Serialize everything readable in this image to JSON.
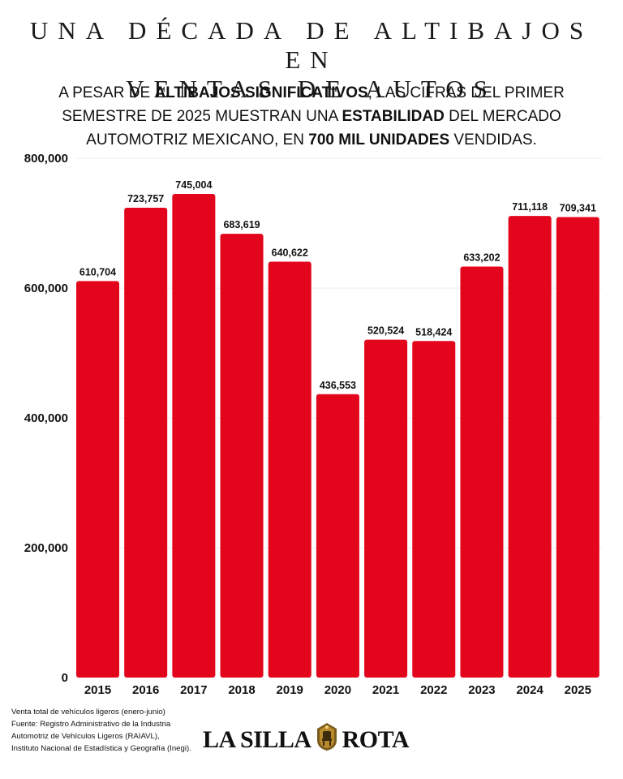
{
  "header": {
    "title_line1": "UNA DÉCADA DE ALTIBAJOS EN",
    "title_line2": "VENTAS DE AUTOS",
    "subtitle_parts": [
      {
        "text": "A PESAR DE ",
        "bold": false
      },
      {
        "text": "ALTIBAJOS SIGNIFICATIVOS",
        "bold": true
      },
      {
        "text": ", LAS CIFRAS DEL PRIMER SEMESTRE DE 2025 MUESTRAN UNA ",
        "bold": false
      },
      {
        "text": "ESTABILIDAD",
        "bold": true
      },
      {
        "text": " DEL MERCADO AUTOMOTRIZ MEXICANO, EN ",
        "bold": false
      },
      {
        "text": "700 MIL UNIDADES",
        "bold": true
      },
      {
        "text": " VENDIDAS.",
        "bold": false
      }
    ]
  },
  "chart_data": {
    "type": "bar",
    "categories": [
      "2015",
      "2016",
      "2017",
      "2018",
      "2019",
      "2020",
      "2021",
      "2022",
      "2023",
      "2024",
      "2025"
    ],
    "values": [
      610704,
      723757,
      745004,
      683619,
      640622,
      436553,
      520524,
      518424,
      633202,
      711118,
      709341
    ],
    "value_labels": [
      "610,704",
      "723,757",
      "745,004",
      "683,619",
      "640,622",
      "436,553",
      "520,524",
      "518,424",
      "633,202",
      "711,118",
      "709,341"
    ],
    "y_ticks": [
      0,
      200000,
      400000,
      600000,
      800000
    ],
    "y_tick_labels": [
      "0",
      "200,000",
      "400,000",
      "600,000",
      "800,000"
    ],
    "ylim": [
      0,
      800000
    ],
    "grid": true,
    "legend": "none",
    "bar_color": "#e3051b",
    "grid_color": "#ececec"
  },
  "footnote": {
    "lines": [
      "Venta total de vehículos ligeros (enero-junio)",
      "Fuente: Registro Administrativo de la Industria",
      "Automotriz de Vehículos Ligeros (RAIAVL),",
      "Instituto Nacional de Estadística y Geografía (Inegi)."
    ]
  },
  "logo": {
    "left_text": "LA SILLA",
    "right_text": "ROTA",
    "emblem_icon": "chair-emblem-icon"
  }
}
